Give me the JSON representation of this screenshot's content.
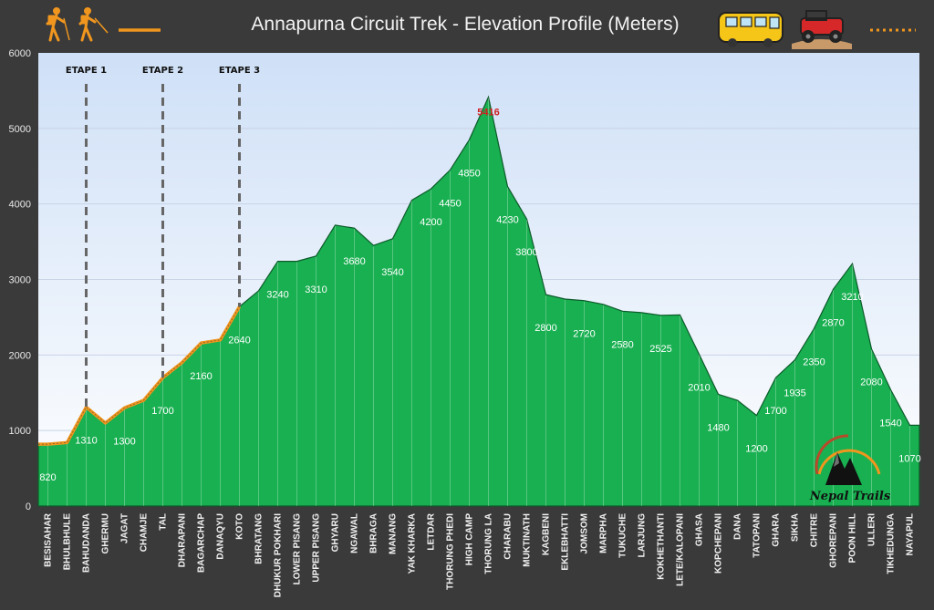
{
  "chart_data": {
    "type": "area",
    "title": "Annapurna Circuit Trek - Elevation Profile (Meters)",
    "ylim": [
      0,
      6000
    ],
    "yticks": [
      0,
      1000,
      2000,
      3000,
      4000,
      5000,
      6000
    ],
    "grid": true,
    "categories": [
      "BESISAHAR",
      "BHULBHULE",
      "BAHUDANDA",
      "GHERMU",
      "JAGAT",
      "CHAMJE",
      "TAL",
      "DHARAPANI",
      "BAGARCHAP",
      "DANAQYU",
      "KOTO",
      "BHRATANG",
      "DHUKUR POKHARI",
      "LOWER PISANG",
      "UPPER PISANG",
      "GHYARU",
      "NGAWAL",
      "BHRAGA",
      "MANANG",
      "YAK KHARKA",
      "LETDAR",
      "THORUNG PHEDI",
      "HIGH CAMP",
      "THORUNG LA",
      "CHARABU",
      "MUKTINATH",
      "KAGBENI",
      "EKLEBHATTI",
      "JOMSOM",
      "MARPHA",
      "TUKUCHE",
      "LARJUNG",
      "KOKHETHANTI",
      "LETE/KALOPANI",
      "GHASA",
      "KOPCHEPANI",
      "DANA",
      "TATOPANI",
      "GHARA",
      "SIKHA",
      "CHITRE",
      "GHOREPANI",
      "POON HILL",
      "ULLERI",
      "TIKHEDUNGA",
      "NAYAPUL"
    ],
    "values": [
      820,
      840,
      1310,
      1100,
      1300,
      1400,
      1700,
      1900,
      2160,
      2200,
      2640,
      2850,
      3240,
      3240,
      3310,
      3720,
      3680,
      3450,
      3540,
      4050,
      4200,
      4450,
      4850,
      5416,
      4230,
      3800,
      2800,
      2740,
      2720,
      2670,
      2580,
      2560,
      2525,
      2530,
      2010,
      1480,
      1400,
      1200,
      1700,
      1935,
      2350,
      2870,
      3210,
      2080,
      1540,
      1070
    ],
    "data_labels": [
      {
        "index": 0,
        "text": "820"
      },
      {
        "index": 2,
        "text": "1310"
      },
      {
        "index": 4,
        "text": "1300"
      },
      {
        "index": 6,
        "text": "1700"
      },
      {
        "index": 8,
        "text": "2160"
      },
      {
        "index": 10,
        "text": "2640"
      },
      {
        "index": 12,
        "text": "3240"
      },
      {
        "index": 14,
        "text": "3310"
      },
      {
        "index": 16,
        "text": "3680"
      },
      {
        "index": 18,
        "text": "3540"
      },
      {
        "index": 20,
        "text": "4200"
      },
      {
        "index": 21,
        "text": "4450"
      },
      {
        "index": 22,
        "text": "4850"
      },
      {
        "index": 24,
        "text": "4230"
      },
      {
        "index": 25,
        "text": "3800"
      },
      {
        "index": 26,
        "text": "2800"
      },
      {
        "index": 28,
        "text": "2720"
      },
      {
        "index": 30,
        "text": "2580"
      },
      {
        "index": 32,
        "text": "2525"
      },
      {
        "index": 34,
        "text": "2010"
      },
      {
        "index": 35,
        "text": "1480"
      },
      {
        "index": 37,
        "text": "1200"
      },
      {
        "index": 38,
        "text": "1700"
      },
      {
        "index": 39,
        "text": "1935"
      },
      {
        "index": 40,
        "text": "2350"
      },
      {
        "index": 41,
        "text": "2870"
      },
      {
        "index": 42,
        "text": "3210"
      },
      {
        "index": 43,
        "text": "2080"
      },
      {
        "index": 44,
        "text": "1540"
      },
      {
        "index": 45,
        "text": "1070"
      }
    ],
    "peak_label": {
      "index": 23,
      "text": "5416"
    },
    "etapes": [
      {
        "label": "ETAPE 1",
        "index": 2
      },
      {
        "label": "ETAPE 2",
        "index": 6
      },
      {
        "label": "ETAPE 3",
        "index": 10
      }
    ],
    "highlight_range": [
      0,
      10
    ],
    "colors": {
      "area_fill": "#18b050",
      "area_stroke": "#0d5a2a",
      "highlight_line": "#f0961e",
      "etape_line": "#666666",
      "background": "#3a3a3a",
      "plot_top": "#cfe0f7",
      "plot_bottom": "#ffffff",
      "gridline": "#c8d4e4"
    }
  },
  "legend": {
    "items": [
      {
        "icon": "hikers-icon",
        "marker": "solid-line"
      },
      {
        "icon": "bus-icon"
      },
      {
        "icon": "jeep-icon",
        "marker": "dotted-line"
      }
    ]
  },
  "logo": {
    "text": "Nepal Trails",
    "icon": "mountain-logo-icon"
  }
}
